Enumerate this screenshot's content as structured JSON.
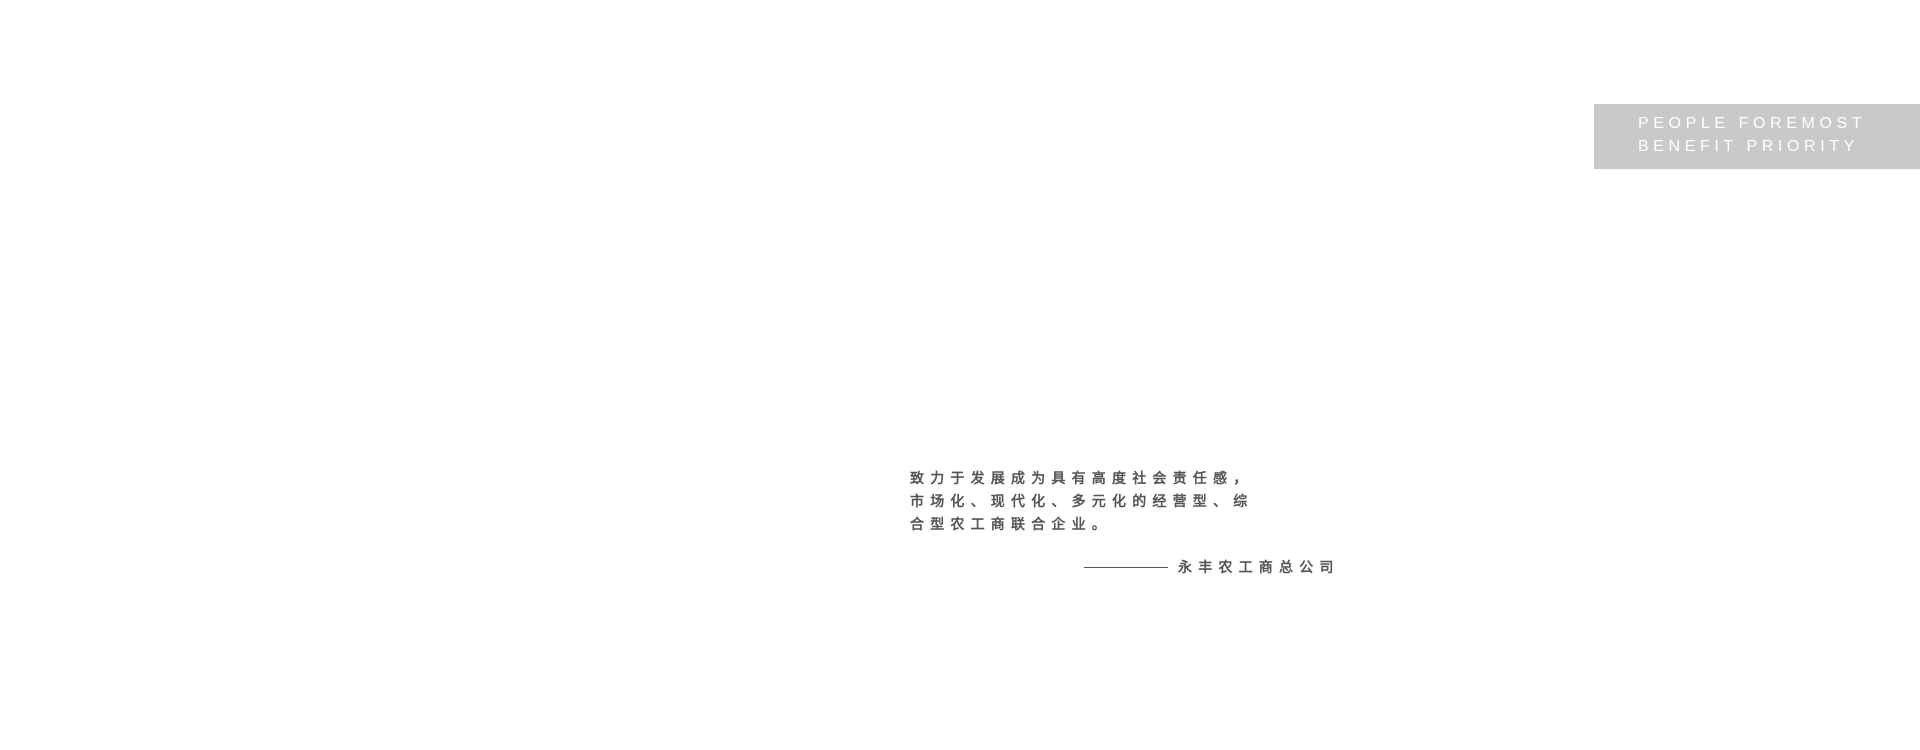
{
  "badge": {
    "line1": "PEOPLE FOREMOST",
    "line2": "BENEFIT PRIORITY"
  },
  "slogan": {
    "lines": [
      "致力于发展成为具有高度社会责任感，",
      "市场化、现代化、多元化的经营型、综",
      "合型农工商联合企业。"
    ]
  },
  "signature": {
    "text": "永丰农工商总公司"
  },
  "colors": {
    "badge_bg": "#c8c9c8",
    "accent_line": "#1f6f66",
    "text": "#555555"
  }
}
